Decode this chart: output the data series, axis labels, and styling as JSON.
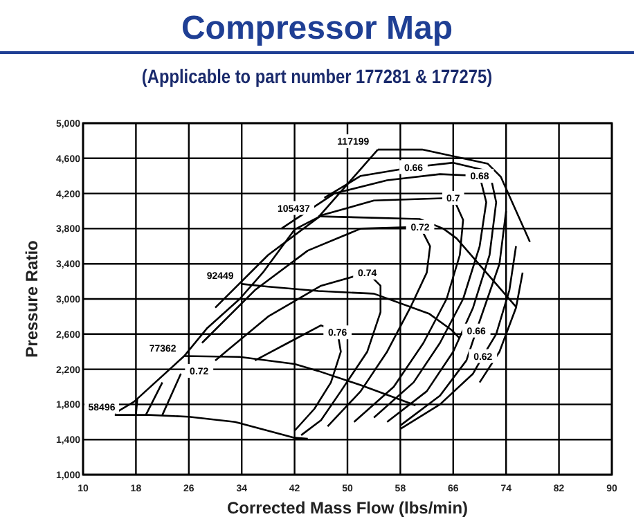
{
  "chart_data": {
    "type": "line",
    "title": "Compressor Map",
    "subtitle": "(Applicable to part number 177281 & 177275)",
    "xlabel": "Corrected Mass Flow (lbs/min)",
    "ylabel": "Pressure Ratio",
    "xlim": [
      10,
      90
    ],
    "xticks": [
      10,
      18,
      26,
      34,
      42,
      50,
      58,
      66,
      74,
      82,
      90
    ],
    "ylim": [
      1000,
      5000
    ],
    "yticks": [
      {
        "value": 1000,
        "label": "1,000"
      },
      {
        "value": 1400,
        "label": "1,400"
      },
      {
        "value": 1800,
        "label": "1,800"
      },
      {
        "value": 2200,
        "label": "2,200"
      },
      {
        "value": 2600,
        "label": "2,600"
      },
      {
        "value": 3000,
        "label": "3,000"
      },
      {
        "value": 3400,
        "label": "3,400"
      },
      {
        "value": 3800,
        "label": "3,800"
      },
      {
        "value": 4200,
        "label": "4,200"
      },
      {
        "value": 4600,
        "label": "4,600"
      },
      {
        "value": 5000,
        "label": "5,000"
      }
    ],
    "grid": true,
    "marker": "none",
    "line_style": "solid",
    "series": [
      {
        "color": "#000000",
        "x": [
          14.8,
          17.7,
          25.3,
          28.8,
          33.7,
          37.2,
          42,
          45.6,
          54.6
        ],
        "values": [
          1700,
          1830,
          2350,
          2670,
          3000,
          3300,
          3790,
          3930,
          4700
        ]
      },
      {
        "color": "#000000",
        "x": [
          14.8,
          20,
          26,
          33,
          38,
          42,
          44
        ],
        "values": [
          1680,
          1680,
          1660,
          1600,
          1500,
          1420,
          1410
        ]
      },
      {
        "color": "#000000",
        "x": [
          25.3,
          33.7,
          42,
          45.6,
          52,
          60.3
        ],
        "values": [
          2350,
          2340,
          2260,
          2180,
          2020,
          1790
        ]
      },
      {
        "color": "#000000",
        "x": [
          34,
          38,
          45.6,
          54,
          62.4,
          65.7,
          67
        ],
        "values": [
          3170,
          3140,
          3090,
          3060,
          2830,
          2650,
          2550
        ]
      },
      {
        "color": "#000000",
        "x": [
          45.6,
          60.9,
          64.5,
          66.5,
          75.5
        ],
        "values": [
          3940,
          3910,
          3800,
          3690,
          2910
        ]
      },
      {
        "color": "#000000",
        "x": [
          54.6,
          61.3,
          71.2,
          73.2,
          77.6
        ],
        "values": [
          4700,
          4700,
          4540,
          4390,
          3650
        ]
      },
      {
        "color": "#000000",
        "x": [
          36,
          41,
          46,
          48.5,
          49,
          47.5,
          45,
          42
        ],
        "values": [
          2300,
          2500,
          2700,
          2620,
          2400,
          2050,
          1750,
          1500
        ]
      },
      {
        "color": "#000000",
        "x": [
          30,
          38,
          46,
          53,
          55,
          55,
          53,
          49,
          46,
          43
        ],
        "values": [
          2300,
          2800,
          3150,
          3300,
          3150,
          2850,
          2400,
          1950,
          1620,
          1450
        ]
      },
      {
        "color": "#000000",
        "x": [
          28,
          36,
          44,
          52,
          61,
          62.5,
          62,
          59.5,
          56,
          52,
          47
        ],
        "values": [
          2500,
          3100,
          3550,
          3800,
          3820,
          3600,
          3300,
          2900,
          2400,
          1950,
          1550
        ]
      },
      {
        "color": "#000000",
        "x": [
          30,
          38,
          46,
          54,
          66,
          67.5,
          67,
          65,
          61.5,
          57,
          51
        ],
        "values": [
          2900,
          3500,
          3950,
          4120,
          4150,
          3900,
          3500,
          3000,
          2500,
          2000,
          1600
        ]
      },
      {
        "color": "#000000",
        "x": [
          40,
          48,
          56,
          64,
          70,
          71,
          70,
          67.5,
          64,
          60,
          54
        ],
        "values": [
          3800,
          4200,
          4350,
          4420,
          4400,
          4100,
          3600,
          3000,
          2500,
          2050,
          1650
        ]
      },
      {
        "color": "#000000",
        "x": [
          46.5,
          52,
          60,
          66,
          71.5,
          72.5,
          71.5,
          69,
          66,
          62,
          56
        ],
        "values": [
          4150,
          4400,
          4500,
          4550,
          4450,
          4100,
          3500,
          2900,
          2400,
          1950,
          1600
        ]
      },
      {
        "color": "#000000",
        "x": [
          74,
          73,
          69.5,
          68,
          64,
          58
        ],
        "values": [
          4000,
          3400,
          2640,
          2300,
          1900,
          1560
        ]
      },
      {
        "color": "#000000",
        "x": [
          75.5,
          74.5,
          72.5,
          70.5,
          69,
          64,
          58
        ],
        "values": [
          3600,
          3100,
          2600,
          2350,
          2150,
          1800,
          1520
        ]
      },
      {
        "color": "#000000",
        "x": [
          76.5,
          75.5,
          73,
          70
        ],
        "values": [
          3300,
          2900,
          2400,
          2050
        ]
      },
      {
        "color": "#000000",
        "x": [
          18,
          18.2
        ],
        "values": [
          1680,
          1860
        ]
      },
      {
        "color": "#000000",
        "x": [
          19.5,
          22
        ],
        "values": [
          1680,
          2050
        ]
      },
      {
        "color": "#000000",
        "x": [
          22,
          24.8
        ],
        "values": [
          1680,
          2150
        ]
      }
    ],
    "annotations": [
      {
        "text": "117199",
        "x": 54.6,
        "y": 4700
      },
      {
        "text": "105437",
        "x": 45.6,
        "y": 3940
      },
      {
        "text": "92449",
        "x": 34,
        "y": 3170
      },
      {
        "text": "77362",
        "x": 25.3,
        "y": 2350
      },
      {
        "text": "58496",
        "x": 14.8,
        "y": 1680
      },
      {
        "text": "0.72",
        "x": 24.8,
        "y": 2150
      },
      {
        "text": "0.66",
        "x": 60,
        "y": 4500
      },
      {
        "text": "0.68",
        "x": 70,
        "y": 4400
      },
      {
        "text": "0.7",
        "x": 66,
        "y": 4150
      },
      {
        "text": "0.72",
        "x": 61,
        "y": 3820
      },
      {
        "text": "0.74",
        "x": 53,
        "y": 3300
      },
      {
        "text": "0.76",
        "x": 48.5,
        "y": 2620
      },
      {
        "text": "0.66",
        "x": 69.5,
        "y": 2640
      },
      {
        "text": "0.62",
        "x": 70.5,
        "y": 2350
      }
    ]
  }
}
